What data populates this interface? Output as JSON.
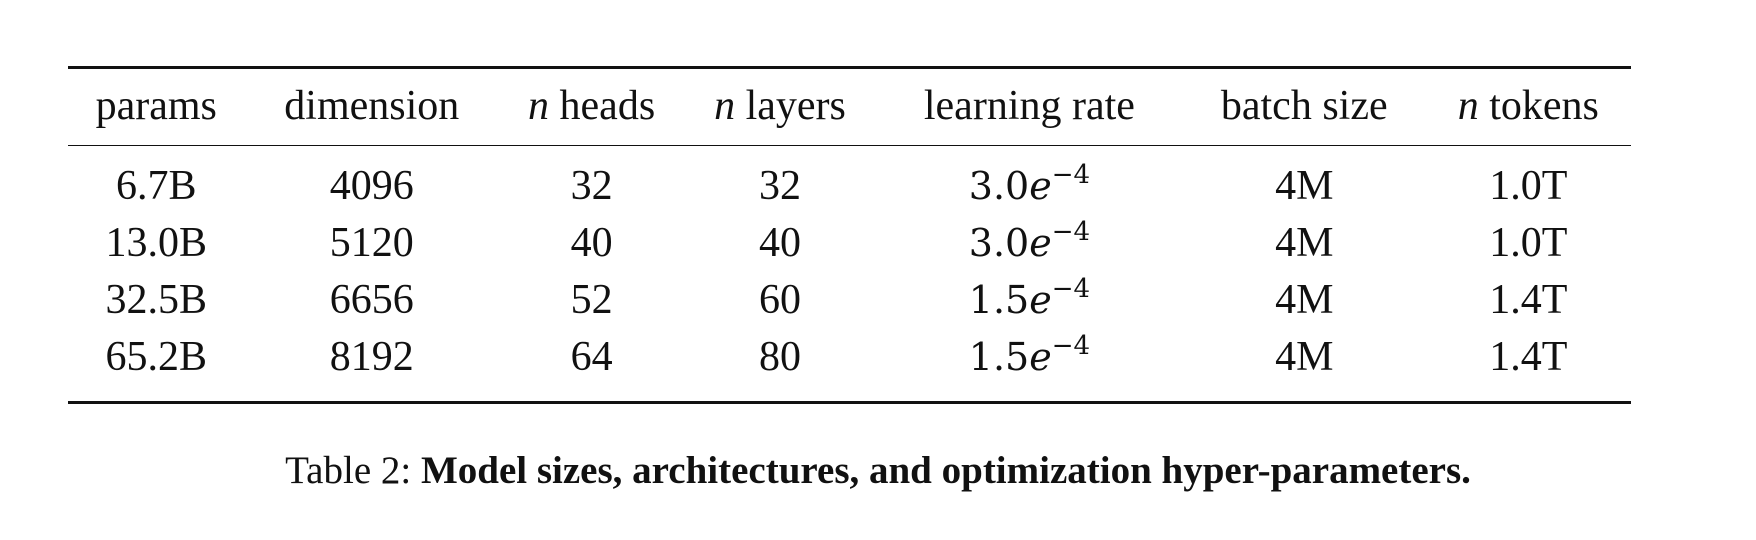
{
  "table": {
    "headers": [
      {
        "prefix": "",
        "text": "params"
      },
      {
        "prefix": "",
        "text": "dimension"
      },
      {
        "prefix": "n",
        "text": " heads"
      },
      {
        "prefix": "n",
        "text": " layers"
      },
      {
        "prefix": "",
        "text": "learning rate"
      },
      {
        "prefix": "",
        "text": "batch size"
      },
      {
        "prefix": "n",
        "text": " tokens"
      }
    ],
    "rows": [
      {
        "params": "6.7B",
        "dimension": "4096",
        "heads": "32",
        "layers": "32",
        "lr": {
          "mantissa": "3.0",
          "e": "e",
          "exp": "−4"
        },
        "batch": "4M",
        "tokens": "1.0T"
      },
      {
        "params": "13.0B",
        "dimension": "5120",
        "heads": "40",
        "layers": "40",
        "lr": {
          "mantissa": "3.0",
          "e": "e",
          "exp": "−4"
        },
        "batch": "4M",
        "tokens": "1.0T"
      },
      {
        "params": "32.5B",
        "dimension": "6656",
        "heads": "52",
        "layers": "60",
        "lr": {
          "mantissa": "1.5",
          "e": "e",
          "exp": "−4"
        },
        "batch": "4M",
        "tokens": "1.4T"
      },
      {
        "params": "65.2B",
        "dimension": "8192",
        "heads": "64",
        "layers": "80",
        "lr": {
          "mantissa": "1.5",
          "e": "e",
          "exp": "−4"
        },
        "batch": "4M",
        "tokens": "1.4T"
      }
    ]
  },
  "caption": {
    "label": "Table 2:",
    "text": "Model sizes, architectures, and optimization hyper-parameters."
  }
}
